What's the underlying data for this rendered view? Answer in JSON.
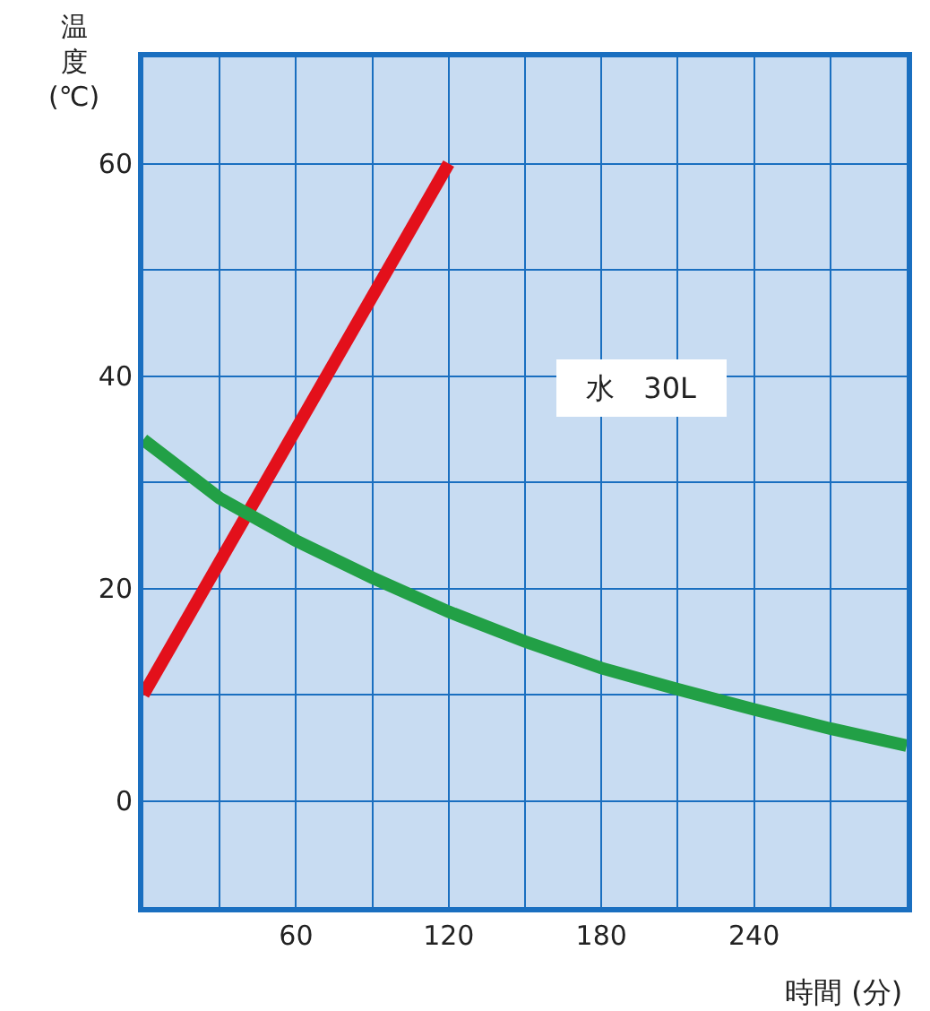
{
  "chart_data": {
    "type": "line",
    "xlabel": "時間 (分)",
    "ylabel": "温度(℃)",
    "annotations": [
      "水　30L"
    ],
    "x": [
      0,
      30,
      60,
      90,
      120,
      150,
      180,
      210,
      240,
      270,
      300
    ],
    "series": [
      {
        "color": "#e3101b",
        "x": [
          0,
          120
        ],
        "values": [
          10,
          60
        ]
      },
      {
        "color": "#22a046",
        "values": [
          34,
          28.5,
          24.5,
          21,
          17.8,
          15,
          12.5,
          10.5,
          8.6,
          6.8,
          5.2
        ]
      }
    ],
    "xlim": [
      0,
      300
    ],
    "ylim": [
      -10,
      70
    ],
    "xticks": [
      {
        "value": 30,
        "label": null
      },
      60,
      {
        "value": 90,
        "label": null
      },
      120,
      {
        "value": 150,
        "label": null
      },
      180,
      {
        "value": 210,
        "label": null
      },
      240,
      {
        "value": 270,
        "label": null
      }
    ],
    "yticks": [
      {
        "value": -10,
        "label": null
      },
      0,
      {
        "value": 10,
        "label": null
      },
      20,
      {
        "value": 30,
        "label": null
      },
      40,
      {
        "value": 50,
        "label": null
      },
      60
    ],
    "grid": true,
    "line_style": "solid",
    "marker": "none"
  }
}
